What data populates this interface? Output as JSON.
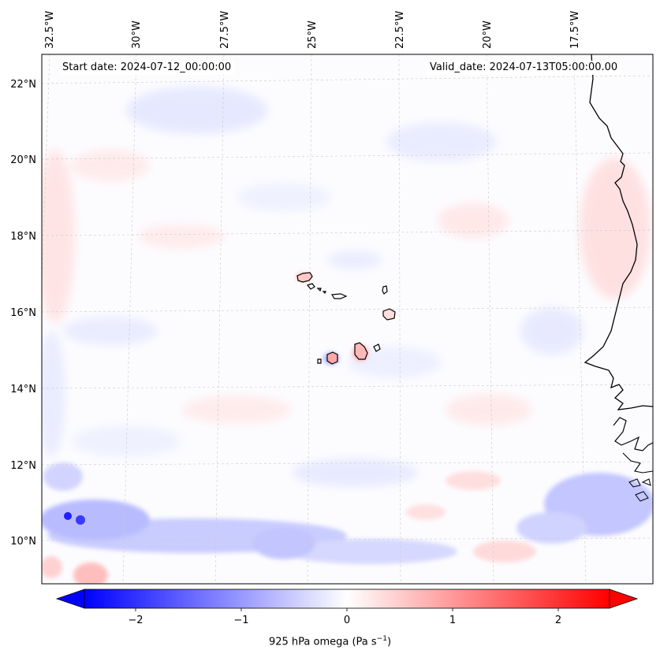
{
  "header": {
    "start_date": "Start date: 2024-07-12_00:00:00",
    "valid_date": "Valid_date: 2024-07-13T05:00:00.00"
  },
  "map": {
    "lon_labels": [
      "32.5°W",
      "30°W",
      "27.5°W",
      "25°W",
      "22.5°W",
      "20°W",
      "17.5°W"
    ],
    "lat_labels": [
      "22°N",
      "20°N",
      "18°N",
      "16°N",
      "14°N",
      "12°N",
      "10°N"
    ],
    "gridlines": true,
    "coastline_color": "#000000"
  },
  "colorbar": {
    "label_text": "925 hPa omega (Pa s",
    "label_exponent": "−1",
    "label_suffix": ")",
    "ticks": [
      "−2",
      "−1",
      "0",
      "1",
      "2"
    ],
    "range": [
      -2.6,
      2.6
    ],
    "colormap": "bwr",
    "color_low": "#0000ff",
    "color_mid": "#ffffff",
    "color_high": "#ff0000",
    "extend": "both"
  }
}
